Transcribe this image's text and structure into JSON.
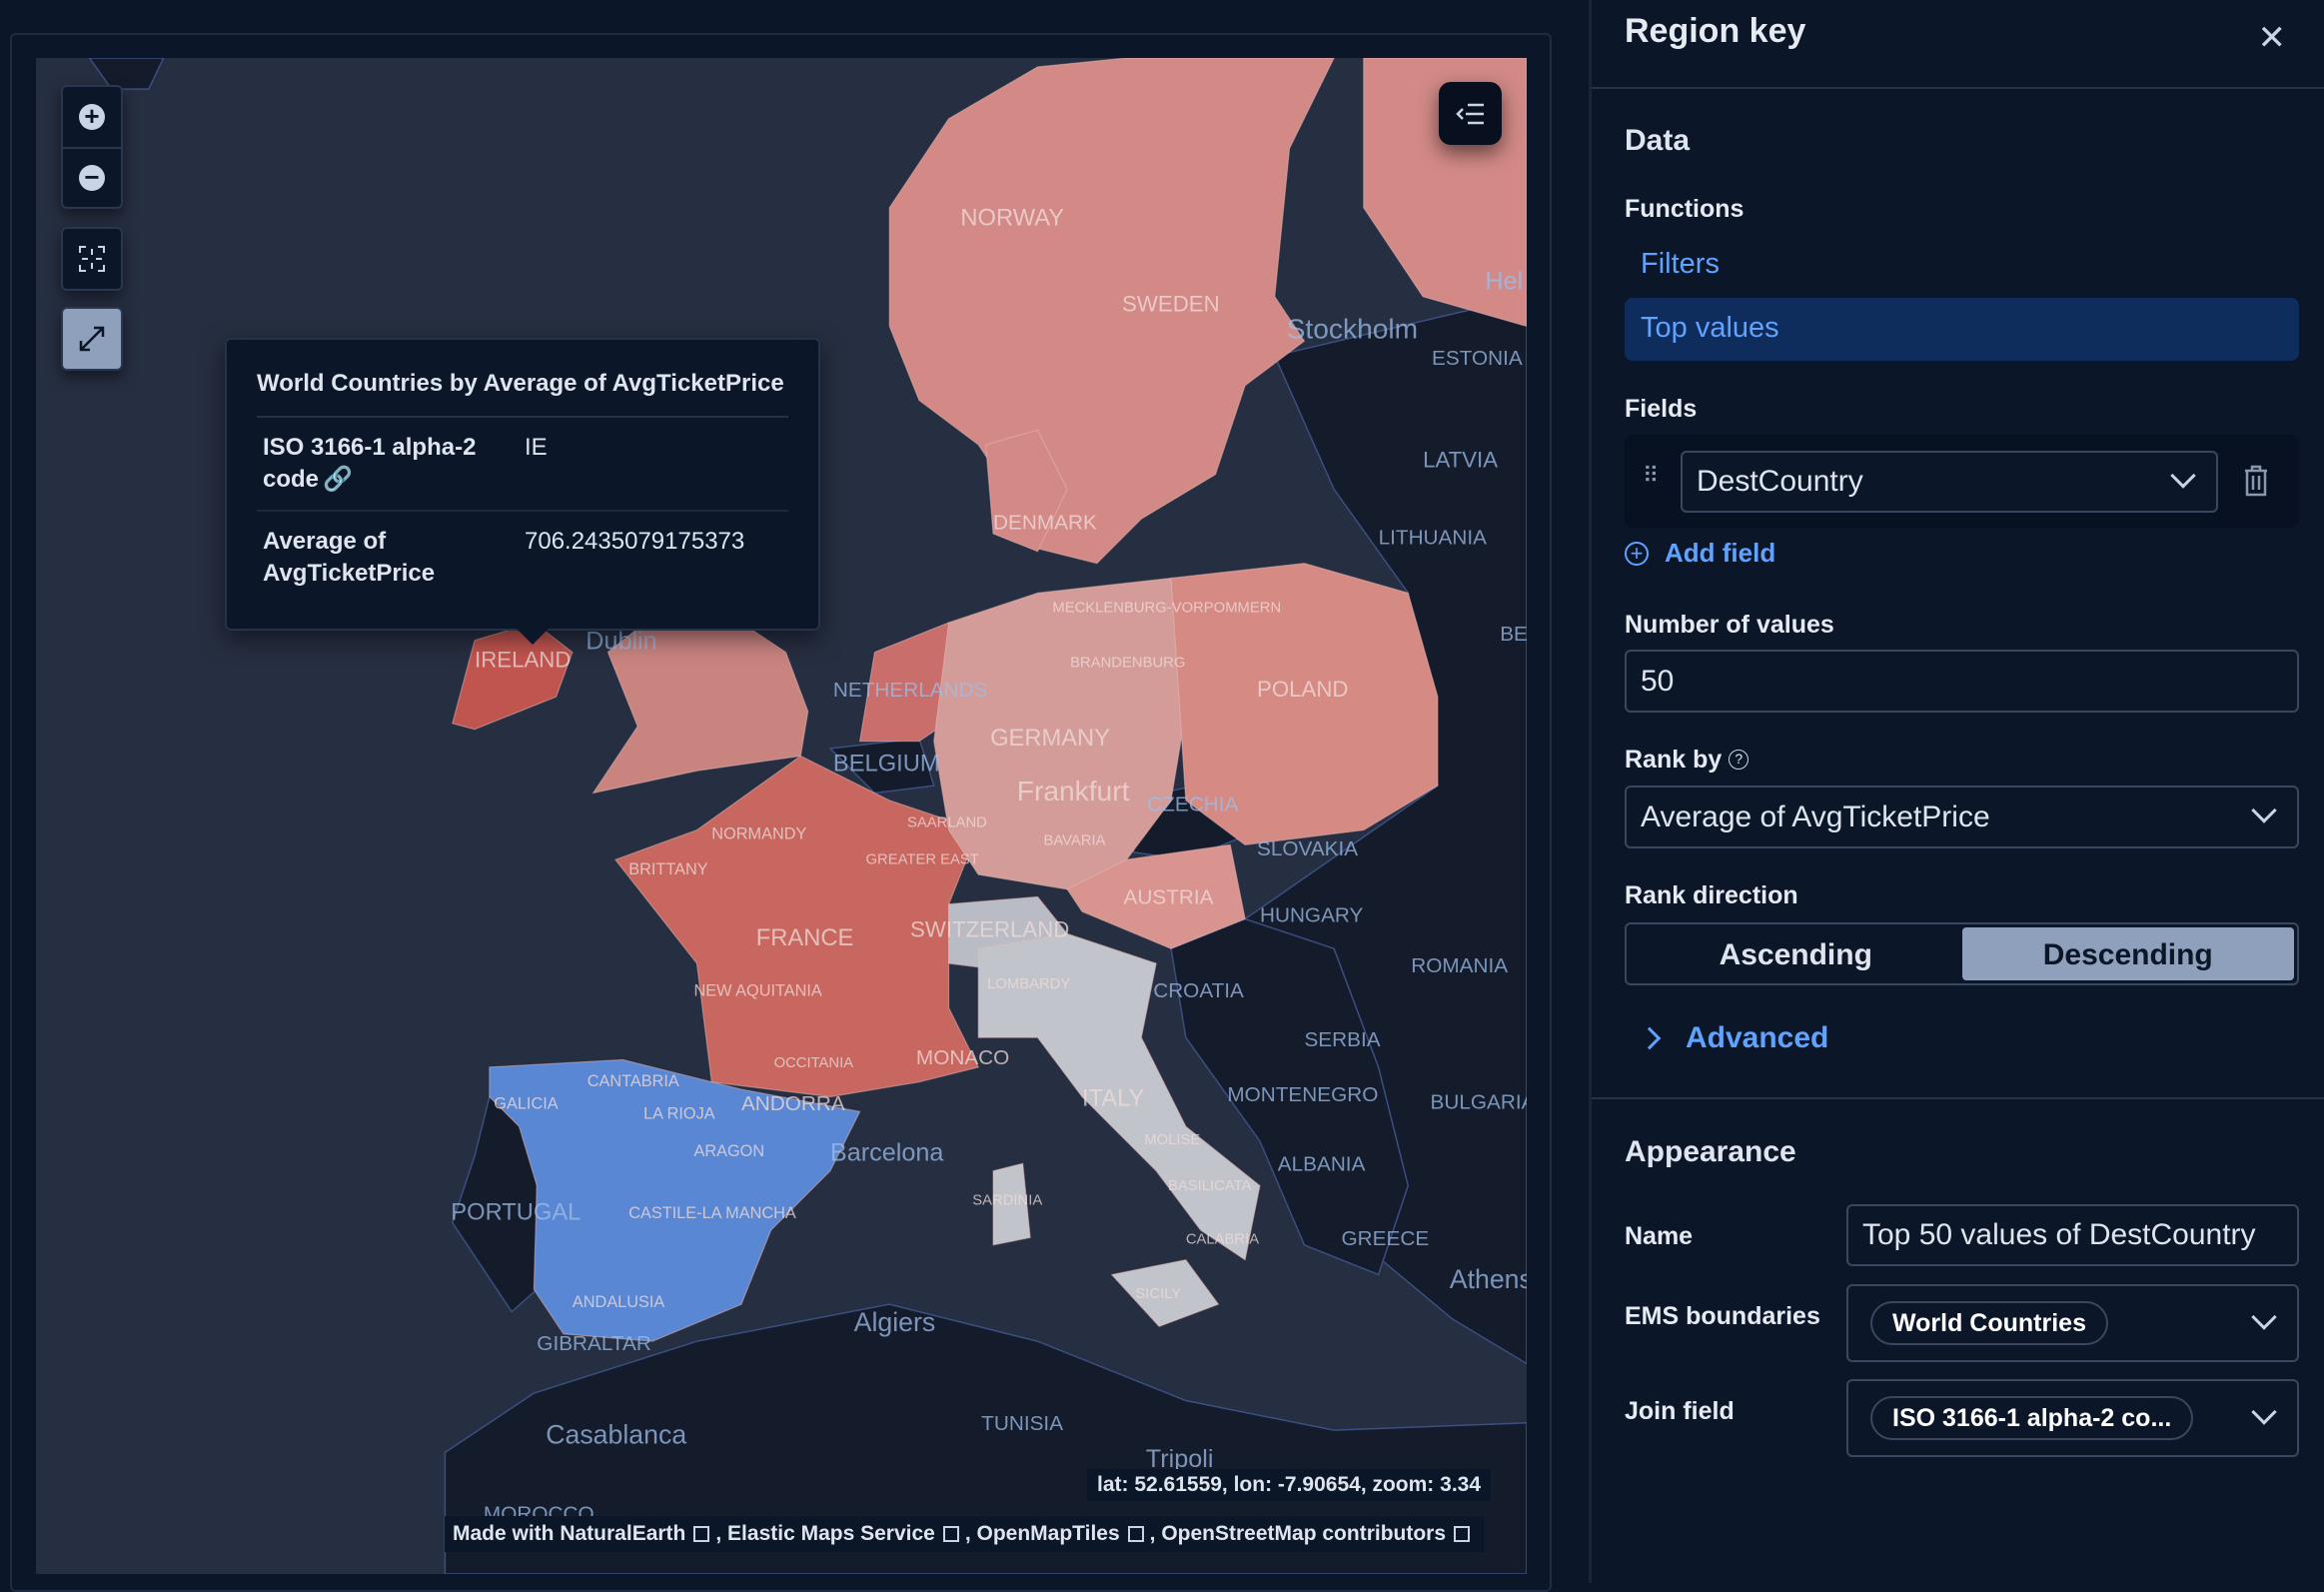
{
  "map": {
    "tooltip": {
      "title": "World Countries by Average of AvgTicketPrice",
      "rows": [
        {
          "key": "ISO 3166-1 alpha-2 code",
          "value": "IE"
        },
        {
          "key": "Average of AvgTicketPrice",
          "value": "706.2435079175373"
        }
      ]
    },
    "coordinates": "lat: 52.61559, lon: -7.90654, zoom: 3.34",
    "attribution": [
      "Made with NaturalEarth",
      "Elastic Maps Service",
      "OpenMapTiles",
      "OpenStreetMap contributors"
    ],
    "labels": [
      "NORWAY",
      "SWEDEN",
      "Stockholm",
      "Hel",
      "ESTONIA",
      "LATVIA",
      "LITHUANIA",
      "DENMARK",
      "MECKLENBURG-VORPOMMERN",
      "BRANDENBURG",
      "IRELAND",
      "Dublin",
      "NETHERLANDS",
      "GERMANY",
      "POLAND",
      "BELGIUM",
      "Frankfurt",
      "CZECHIA",
      "SAARLAND",
      "BAVARIA",
      "NORMANDY",
      "GREATER EAST",
      "BRITTANY",
      "SLOVAKIA",
      "AUSTRIA",
      "HUNGARY",
      "FRANCE",
      "SWITZERLAND",
      "ROMANIA",
      "LOMBARDY",
      "CROATIA",
      "NEW AQUITANIA",
      "OCCITANIA",
      "MONACO",
      "SERBIA",
      "CANTABRIA",
      "GALICIA",
      "LA RIOJA",
      "ANDORRA",
      "ITALY",
      "MONTENEGRO",
      "BULGARIA",
      "ARAGON",
      "Barcelona",
      "MOLISE",
      "ALBANIA",
      "PORTUGAL",
      "SARDINIA",
      "BASILICATA",
      "CASTILE-LA MANCHA",
      "CALABRIA",
      "GREECE",
      "Athens",
      "SICILY",
      "ANDALUSIA",
      "GIBRALTAR",
      "Algiers",
      "TUNISIA",
      "Casablanca",
      "Tripoli",
      "MOROCCO",
      "BE"
    ],
    "colors": {
      "high": "#c0544f",
      "mid": "#c86660",
      "low": "#d49c98",
      "lowest": "#5a87d4",
      "grey": "#c2c4cc"
    }
  },
  "panel": {
    "title": "Region key",
    "data_heading": "Data",
    "functions_label": "Functions",
    "functions": [
      "Filters",
      "Top values"
    ],
    "selected_function": "Top values",
    "fields_label": "Fields",
    "field_value": "DestCountry",
    "add_field": "Add field",
    "number_of_values_label": "Number of values",
    "number_of_values": "50",
    "rank_by_label": "Rank by",
    "rank_by_value": "Average of AvgTicketPrice",
    "rank_direction_label": "Rank direction",
    "rank_directions": [
      "Ascending",
      "Descending"
    ],
    "selected_direction": "Descending",
    "advanced": "Advanced",
    "appearance_heading": "Appearance",
    "name_label": "Name",
    "name_value": "Top 50 values of DestCountry",
    "ems_label": "EMS boundaries",
    "ems_value": "World Countries",
    "join_label": "Join field",
    "join_value": "ISO 3166-1 alpha-2 co..."
  },
  "accent": "#61a2ff"
}
